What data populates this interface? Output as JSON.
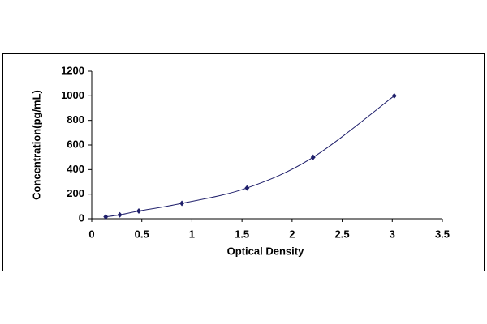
{
  "chart_data": {
    "type": "scatter",
    "x_label": "Optical Density",
    "y_label": "Concentration(pg/mL)",
    "x": [
      0.14,
      0.28,
      0.47,
      0.9,
      1.55,
      2.21,
      3.02
    ],
    "values": [
      15.6,
      31.2,
      62.5,
      125,
      250,
      500,
      1000
    ],
    "color": "#1f1f6b",
    "smooth_line": true,
    "xlim": [
      0,
      3.5
    ],
    "xticks": [
      0,
      0.5,
      1,
      1.5,
      2,
      2.5,
      3,
      3.5
    ],
    "ylim": [
      0,
      1200
    ],
    "yticks": [
      0,
      200,
      400,
      600,
      800,
      1000,
      1200
    ],
    "grid": false
  }
}
